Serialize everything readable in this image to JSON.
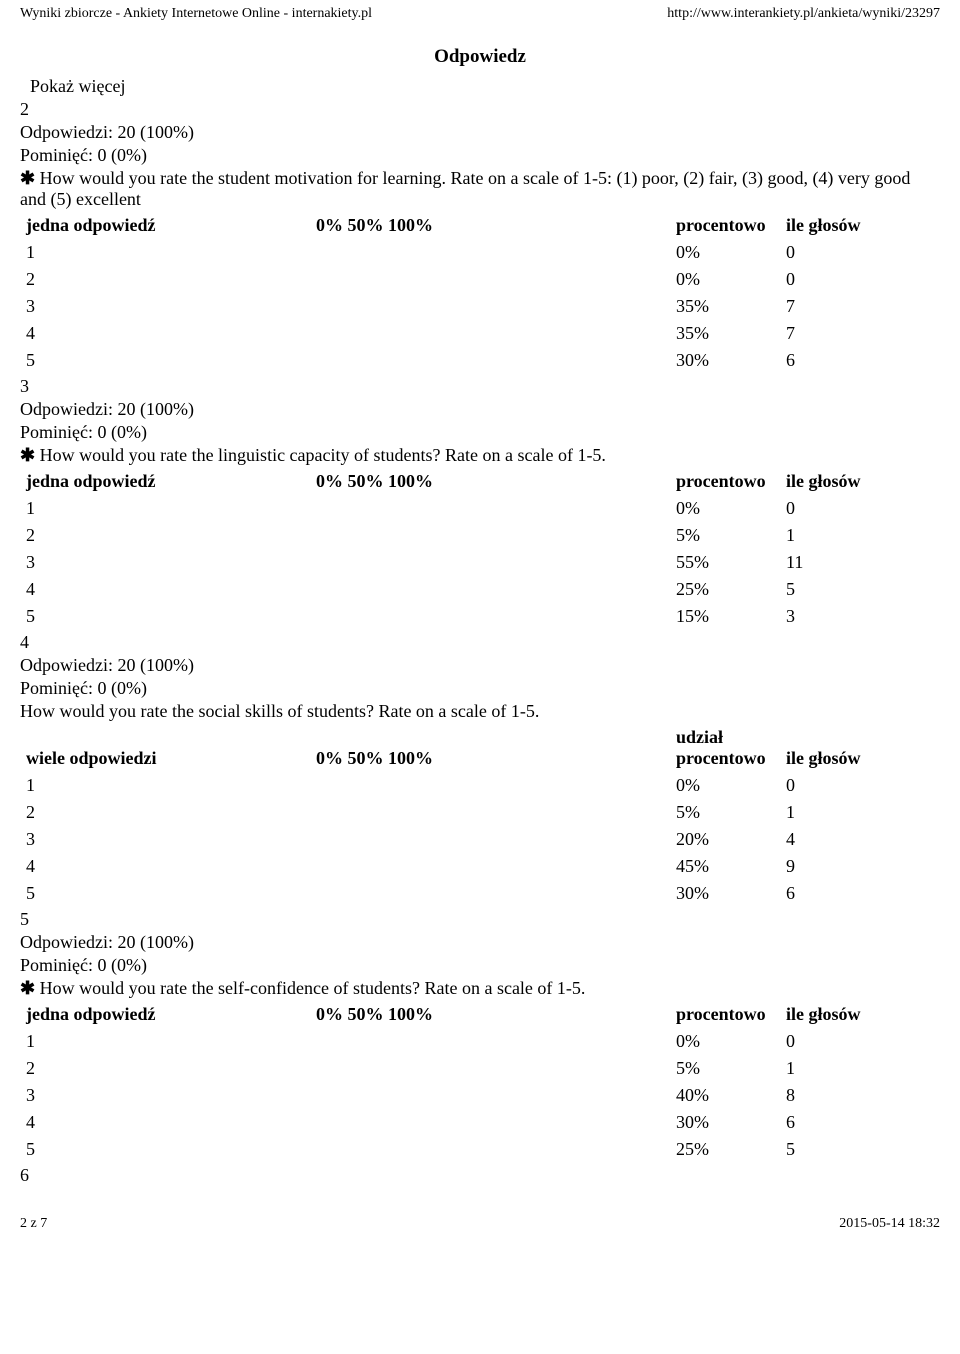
{
  "header": {
    "left": "Wyniki zbiorcze - Ankiety Internetowe Online - internakiety.pl",
    "right": "http://www.interankiety.pl/ankieta/wyniki/23297"
  },
  "title": "Odpowiedz",
  "show_more": "Pokaż więcej",
  "labels": {
    "responses_prefix": "Odpowiedzi: ",
    "skipped_prefix": "Pominięć: ",
    "single_answer": "jedna odpowiedź",
    "multi_answer": "wiele odpowiedzi",
    "bar_header": "0% 50% 100%",
    "pct_header": "procentowo",
    "share_pct_header": "udział procentowo",
    "votes_header": "ile głosów"
  },
  "sections": [
    {
      "number": "2",
      "responses": "20 (100%)",
      "skipped": "0 (0%)",
      "required": true,
      "question": "How would you rate the student motivation for learning. Rate on a scale of 1-5: (1) poor, (2) fair, (3) good, (4) very good and (5) excellent",
      "answer_type": "single",
      "has_share": false,
      "rows": [
        {
          "label": "1",
          "pct": "0%",
          "votes": "0"
        },
        {
          "label": "2",
          "pct": "0%",
          "votes": "0"
        },
        {
          "label": "3",
          "pct": "35%",
          "votes": "7"
        },
        {
          "label": "4",
          "pct": "35%",
          "votes": "7"
        },
        {
          "label": "5",
          "pct": "30%",
          "votes": "6"
        }
      ]
    },
    {
      "number": "3",
      "responses": "20 (100%)",
      "skipped": "0 (0%)",
      "required": true,
      "question": "How would you rate the linguistic capacity of students? Rate on a scale of 1-5.",
      "answer_type": "single",
      "has_share": false,
      "rows": [
        {
          "label": "1",
          "pct": "0%",
          "votes": "0"
        },
        {
          "label": "2",
          "pct": "5%",
          "votes": "1"
        },
        {
          "label": "3",
          "pct": "55%",
          "votes": "11"
        },
        {
          "label": "4",
          "pct": "25%",
          "votes": "5"
        },
        {
          "label": "5",
          "pct": "15%",
          "votes": "3"
        }
      ]
    },
    {
      "number": "4",
      "responses": "20 (100%)",
      "skipped": "0 (0%)",
      "required": false,
      "question": "How would you rate the social skills of students? Rate on a scale of 1-5.",
      "answer_type": "multi",
      "has_share": true,
      "rows": [
        {
          "label": "1",
          "pct": "0%",
          "votes": "0"
        },
        {
          "label": "2",
          "pct": "5%",
          "votes": "1"
        },
        {
          "label": "3",
          "pct": "20%",
          "votes": "4"
        },
        {
          "label": "4",
          "pct": "45%",
          "votes": "9"
        },
        {
          "label": "5",
          "pct": "30%",
          "votes": "6"
        }
      ]
    },
    {
      "number": "5",
      "responses": "20 (100%)",
      "skipped": "0 (0%)",
      "required": true,
      "question": "How would you rate the self-confidence of students? Rate on a scale of 1-5.",
      "answer_type": "single",
      "has_share": false,
      "rows": [
        {
          "label": "1",
          "pct": "0%",
          "votes": "0"
        },
        {
          "label": "2",
          "pct": "5%",
          "votes": "1"
        },
        {
          "label": "3",
          "pct": "40%",
          "votes": "8"
        },
        {
          "label": "4",
          "pct": "30%",
          "votes": "6"
        },
        {
          "label": "5",
          "pct": "25%",
          "votes": "5"
        }
      ]
    }
  ],
  "trailing_number": "6",
  "footer": {
    "left": "2 z 7",
    "right": "2015-05-14 18:32"
  }
}
